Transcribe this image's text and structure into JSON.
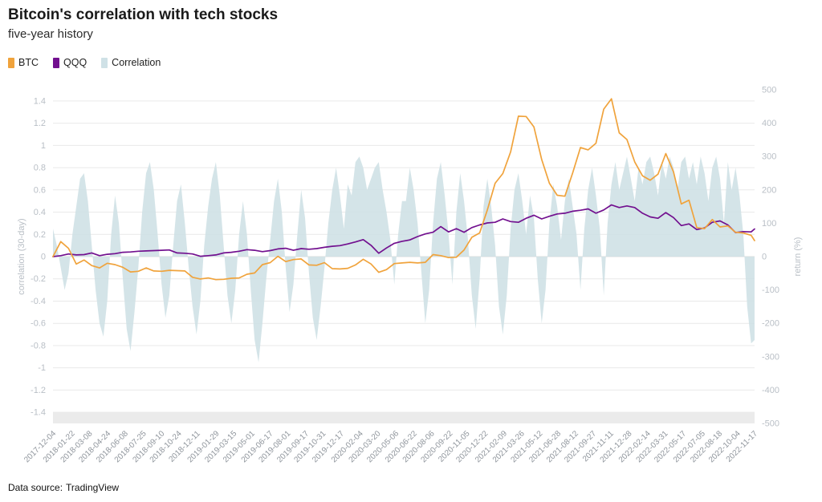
{
  "header": {
    "title": "Bitcoin's correlation with tech stocks",
    "subtitle": "five-year history"
  },
  "legend": {
    "items": [
      {
        "label": "BTC",
        "color": "#f0a33c"
      },
      {
        "label": "QQQ",
        "color": "#72108f"
      },
      {
        "label": "Correlation",
        "color": "#cfe1e6"
      }
    ]
  },
  "footer": {
    "label": "Data source:",
    "source": "TradingView"
  },
  "chart_data": {
    "type": "line+area",
    "title": "Bitcoin's correlation with tech stocks",
    "subtitle": "five-year history",
    "x_start_date": "2017-12-04",
    "x_end_date": "2022-11-17",
    "x_domain_days": [
      0,
      1809
    ],
    "x_tick_labels": [
      "2017-12-04",
      "2018-01-22",
      "2018-03-08",
      "2018-04-24",
      "2018-06-08",
      "2018-07-25",
      "2018-09-10",
      "2018-10-24",
      "2018-12-11",
      "2019-01-29",
      "2019-03-15",
      "2019-05-01",
      "2019-06-17",
      "2019-08-01",
      "2019-09-17",
      "2019-10-31",
      "2019-12-17",
      "2020-02-04",
      "2020-03-20",
      "2020-05-06",
      "2020-06-22",
      "2020-08-06",
      "2020-09-22",
      "2020-11-05",
      "2020-12-22",
      "2021-02-09",
      "2021-03-26",
      "2021-05-12",
      "2021-06-28",
      "2021-08-12",
      "2021-09-27",
      "2021-11-11",
      "2021-12-28",
      "2022-02-14",
      "2022-03-31",
      "2022-05-17",
      "2022-07-05",
      "2022-08-18",
      "2022-10-04",
      "2022-11-17"
    ],
    "x_tick_days": [
      0,
      49,
      94,
      141,
      186,
      233,
      280,
      324,
      372,
      421,
      466,
      513,
      560,
      605,
      652,
      696,
      743,
      792,
      837,
      884,
      931,
      976,
      1023,
      1067,
      1114,
      1163,
      1208,
      1255,
      1302,
      1347,
      1393,
      1438,
      1485,
      1533,
      1578,
      1625,
      1674,
      1718,
      1765,
      1809
    ],
    "left_axis": {
      "label": "correlation (30-day)",
      "min": -1.5,
      "max": 1.5,
      "tick_labels": [
        "1.4",
        "1.2",
        "1",
        "0.8",
        "0.6",
        "0.4",
        "0.2",
        "0",
        "-0.2",
        "-0.4",
        "-0.6",
        "-0.8",
        "-1",
        "-1.2",
        "-1.4"
      ]
    },
    "right_axis": {
      "label": "return (%)",
      "min": -500,
      "max": 500,
      "ticks": [
        500,
        400,
        300,
        200,
        100,
        0,
        -100,
        -200,
        -300,
        -400,
        -500
      ]
    },
    "grid": true,
    "legend_position": "top-left",
    "series": [
      {
        "name": "BTC",
        "type": "line",
        "axis": "right",
        "unit": "%",
        "color": "#f0a33c",
        "x_step_days": 20,
        "values": [
          0,
          45,
          25,
          -22,
          -10,
          -27,
          -34,
          -20,
          -24,
          -32,
          -46,
          -44,
          -34,
          -43,
          -44,
          -41,
          -42,
          -43,
          -62,
          -67,
          -64,
          -69,
          -68,
          -65,
          -64,
          -53,
          -49,
          -24,
          -18,
          1,
          -15,
          -9,
          -7,
          -25,
          -26,
          -18,
          -36,
          -37,
          -35,
          -25,
          -8,
          -22,
          -47,
          -39,
          -21,
          -19,
          -17,
          -19,
          -17,
          6,
          3,
          -3,
          -2,
          20,
          58,
          71,
          140,
          220,
          249,
          314,
          421,
          420,
          389,
          291,
          220,
          184,
          181,
          251,
          327,
          320,
          340,
          442,
          473,
          371,
          351,
          284,
          242,
          229,
          247,
          309,
          254,
          158,
          169,
          87,
          84,
          111,
          89,
          92,
          73,
          71,
          64,
          48
        ]
      },
      {
        "name": "QQQ",
        "type": "line",
        "axis": "right",
        "unit": "%",
        "color": "#72108f",
        "x_step_days": 20,
        "values": [
          0,
          3,
          8,
          5,
          6,
          11,
          3,
          7,
          9,
          13,
          14,
          16,
          17,
          18,
          19,
          20,
          11,
          10,
          8,
          1,
          3,
          5,
          11,
          13,
          16,
          21,
          19,
          15,
          18,
          23,
          25,
          19,
          24,
          22,
          24,
          28,
          31,
          33,
          38,
          44,
          51,
          34,
          10,
          26,
          40,
          46,
          50,
          60,
          68,
          73,
          90,
          74,
          84,
          73,
          87,
          95,
          101,
          103,
          113,
          105,
          103,
          115,
          124,
          113,
          121,
          128,
          130,
          136,
          139,
          143,
          130,
          140,
          155,
          147,
          152,
          147,
          130,
          119,
          115,
          132,
          117,
          93,
          98,
          81,
          86,
          103,
          107,
          95,
          72,
          75,
          74,
          83
        ]
      },
      {
        "name": "Correlation",
        "type": "area",
        "axis": "left",
        "color": "#cfe1e6",
        "x_step_days": 10,
        "values": [
          0.25,
          0.1,
          -0.1,
          -0.3,
          -0.15,
          0.2,
          0.45,
          0.7,
          0.75,
          0.5,
          0.1,
          -0.3,
          -0.6,
          -0.72,
          -0.4,
          0.2,
          0.55,
          0.3,
          -0.2,
          -0.65,
          -0.85,
          -0.5,
          -0.1,
          0.4,
          0.75,
          0.85,
          0.6,
          0.2,
          -0.25,
          -0.55,
          -0.35,
          0.1,
          0.5,
          0.65,
          0.3,
          -0.1,
          -0.45,
          -0.7,
          -0.4,
          0.1,
          0.45,
          0.7,
          0.85,
          0.55,
          0.1,
          -0.35,
          -0.6,
          -0.3,
          0.2,
          0.5,
          0.2,
          -0.3,
          -0.75,
          -0.95,
          -0.6,
          -0.2,
          0.15,
          0.5,
          0.7,
          0.4,
          -0.1,
          -0.5,
          -0.25,
          0.2,
          0.6,
          0.35,
          -0.15,
          -0.55,
          -0.75,
          -0.45,
          -0.1,
          0.3,
          0.6,
          0.8,
          0.55,
          0.25,
          0.65,
          0.55,
          0.85,
          0.9,
          0.8,
          0.6,
          0.7,
          0.8,
          0.85,
          0.6,
          0.4,
          0.15,
          -0.25,
          0.2,
          0.5,
          0.5,
          0.8,
          0.6,
          0.3,
          -0.15,
          -0.6,
          -0.3,
          0.3,
          0.7,
          0.85,
          0.55,
          0.2,
          -0.25,
          0.4,
          0.75,
          0.5,
          0.15,
          -0.35,
          -0.65,
          -0.2,
          0.45,
          0.7,
          0.45,
          0.1,
          -0.45,
          -0.7,
          -0.35,
          0.25,
          0.6,
          0.75,
          0.5,
          0.2,
          0.55,
          0.35,
          -0.2,
          -0.6,
          -0.3,
          0.3,
          0.65,
          0.45,
          0.15,
          0.5,
          0.7,
          0.45,
          0.2,
          -0.3,
          0.25,
          0.6,
          0.8,
          0.55,
          0.25,
          -0.35,
          0.3,
          0.65,
          0.85,
          0.6,
          0.75,
          0.9,
          0.7,
          0.5,
          0.8,
          0.65,
          0.85,
          0.9,
          0.75,
          0.55,
          0.85,
          0.7,
          0.9,
          0.8,
          0.6,
          0.85,
          0.9,
          0.7,
          0.85,
          0.65,
          0.9,
          0.75,
          0.5,
          0.8,
          0.9,
          0.7,
          0.3,
          0.85,
          0.6,
          0.8,
          0.55,
          0.2,
          -0.45,
          -0.78,
          -0.75
        ]
      }
    ]
  }
}
